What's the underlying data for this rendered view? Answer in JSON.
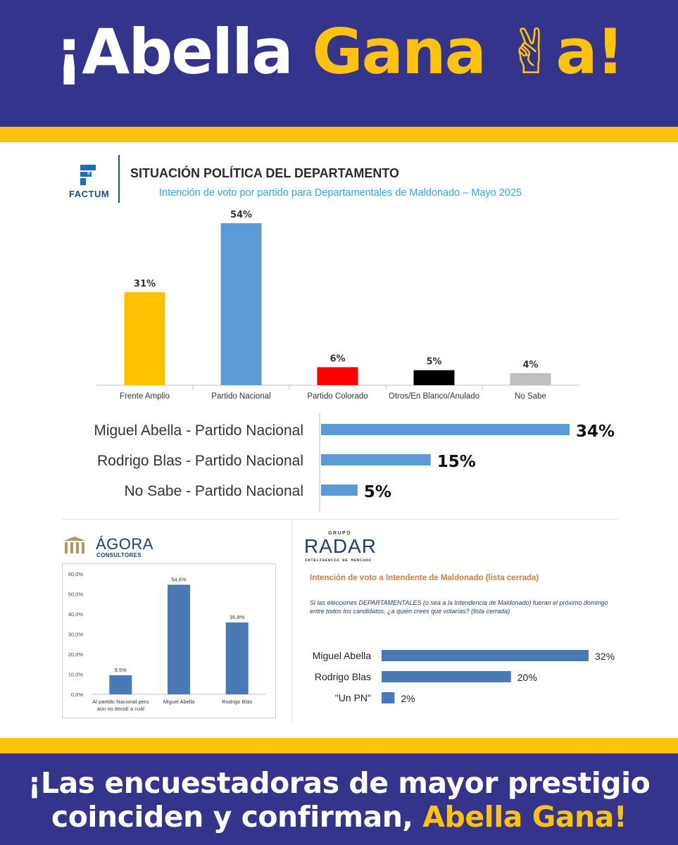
{
  "header": {
    "title_part1": "¡Abella",
    "title_part2": "Gana",
    "title_emoji": "✌",
    "title_part3": "a!"
  },
  "factum": {
    "logo_text": "FACTUM",
    "title": "SITUACIÓN POLÍTICA DEL DEPARTAMENTO",
    "subtitle": "Intención de voto por partido para Departamentales de Maldonado – Mayo 2025"
  },
  "agora": {
    "name": "ÁGORA",
    "sub": "CONSULTORES"
  },
  "radar": {
    "grupo": "GRUPO",
    "name": "RADAR",
    "sub": "INTELIGENCIA DE MERCADO",
    "heading": "Intención de voto a Intendente de Maldonado (lista cerrada)",
    "question": "Si las elecciones DEPARTAMENTALES (o sea a la Intendencia de Maldonado) fueran el próximo domingo entre todos los candidatos, ¿a quién crees que votarías? (lista cerrada)"
  },
  "footer": {
    "line1": "¡Las encuestadoras de mayor prestigio",
    "line2_part1": "coinciden y confirman,",
    "line2_part2": "Abella Gana!"
  },
  "colors": {
    "brand_blue": "#35348c",
    "brand_yellow": "#ffc20e",
    "bar_blue": "#5b9bd5",
    "agora_bar": "#4a7ab5"
  },
  "chart_data": [
    {
      "type": "bar",
      "categories": [
        "Frente Amplio",
        "Partido Nacional",
        "Partido Colorado",
        "Otros/En Blanco/Anulado",
        "No Sabe"
      ],
      "values": [
        31,
        54,
        6,
        5,
        4
      ],
      "labels": [
        "31%",
        "54%",
        "6%",
        "5%",
        "4%"
      ],
      "colors": [
        "#ffc000",
        "#5b9bd5",
        "#ff0000",
        "#000000",
        "#bfbfbf"
      ],
      "ylim": [
        0,
        60
      ]
    },
    {
      "type": "bar",
      "orientation": "horizontal",
      "categories": [
        "Miguel Abella - Partido Nacional",
        "Rodrigo Blas - Partido Nacional",
        "No Sabe - Partido Nacional"
      ],
      "values": [
        34,
        15,
        5
      ],
      "labels": [
        "34%",
        "15%",
        "5%"
      ],
      "xlim": [
        0,
        34
      ]
    },
    {
      "type": "bar",
      "categories": [
        "Al partido Nacional pero aún no decidí a cuál",
        "Miguel Abella",
        "Rodrigo Blás"
      ],
      "values": [
        9.5,
        54.6,
        35.8
      ],
      "labels": [
        "9,5%",
        "54,6%",
        "35,8%"
      ],
      "yticks": [
        "0,0%",
        "10,0%",
        "20,0%",
        "30,0%",
        "40,0%",
        "50,0%",
        "60,0%"
      ],
      "ylim": [
        0,
        60
      ]
    },
    {
      "type": "bar",
      "orientation": "horizontal",
      "categories": [
        "Miguel Abella",
        "Rodrigo Blas",
        "\"Un PN\""
      ],
      "values": [
        32,
        20,
        2
      ],
      "labels": [
        "32%",
        "20%",
        "2%"
      ],
      "xlim": [
        0,
        32
      ]
    }
  ]
}
